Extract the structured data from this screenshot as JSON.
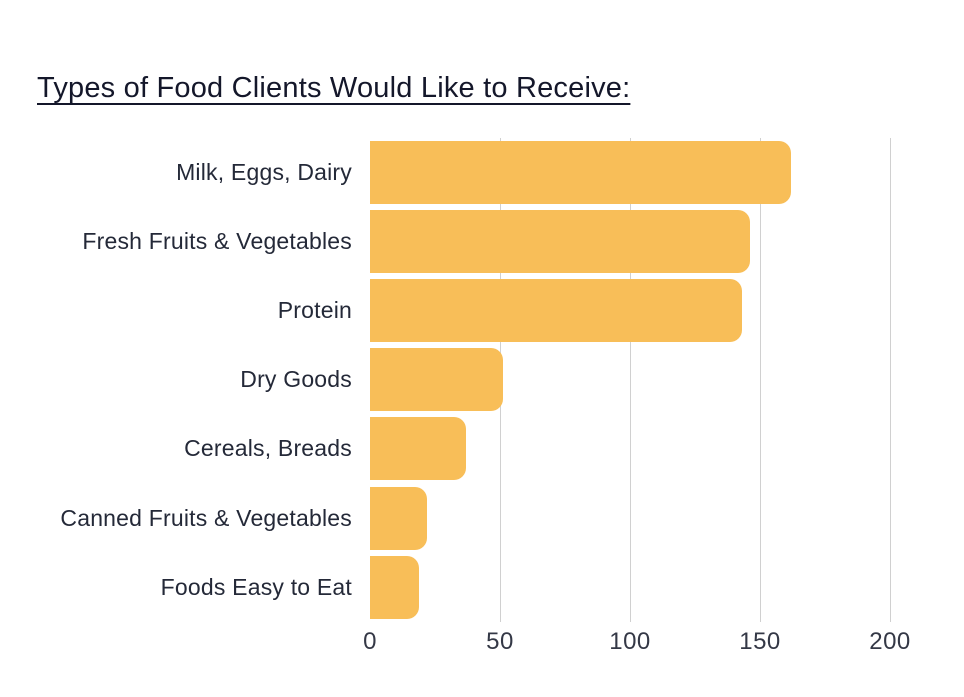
{
  "page": {
    "title": "Types of Food Clients Would Like to Receive:"
  },
  "chart_data": {
    "type": "bar",
    "orientation": "horizontal",
    "title": "Types of Food Clients Would Like to Receive:",
    "categories": [
      "Milk, Eggs, Dairy",
      "Fresh Fruits & Vegetables",
      "Protein",
      "Dry Goods",
      "Cereals, Breads",
      "Canned Fruits & Vegetables",
      "Foods Easy to Eat"
    ],
    "values": [
      162,
      146,
      143,
      51,
      37,
      22,
      19
    ],
    "x_ticks": [
      0,
      50,
      100,
      150,
      200
    ],
    "xlim": [
      0,
      222
    ],
    "xlabel": "",
    "ylabel": "",
    "grid": "vertical-only",
    "legend": false,
    "colors": {
      "bar": "#F8BE58",
      "gridline": "#D0D0D0",
      "title_text": "#14172A",
      "category_text": "#242938",
      "tick_text": "#343846",
      "background": "#FFFFFF"
    }
  }
}
